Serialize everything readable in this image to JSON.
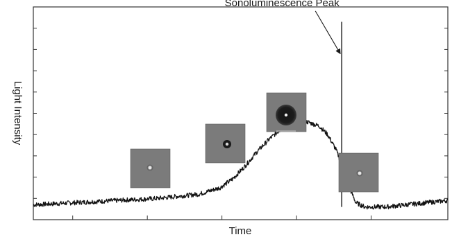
{
  "chart_data": {
    "type": "line",
    "title": "",
    "xlabel": "Time",
    "ylabel": "Light Intensity",
    "xlim": [
      0,
      100
    ],
    "ylim": [
      0,
      100
    ],
    "grid": false,
    "show_tick_labels": false,
    "series": [
      {
        "name": "",
        "color": "#111111",
        "x": [
          0,
          10,
          20,
          30,
          35,
          40,
          45,
          48,
          51,
          54,
          57,
          60,
          63,
          66,
          69,
          71,
          73,
          75,
          76.5,
          77.8,
          80,
          85,
          90,
          95,
          100
        ],
        "y": [
          7,
          8,
          9,
          10,
          11,
          12,
          15,
          19,
          25,
          32,
          38,
          43,
          46,
          46,
          44,
          40,
          33,
          23,
          14,
          8,
          6,
          6,
          7,
          8,
          9
        ]
      },
      {
        "name": "",
        "color": "#333333",
        "x": [
          74.4,
          74.4
        ],
        "y": [
          6,
          93
        ]
      }
    ],
    "annotations": [
      {
        "text": "Sonoluminescence Peak",
        "text_x": 60,
        "text_y": 102,
        "arrow_to_x": 74.4,
        "arrow_to_y": 78
      }
    ],
    "inset_images": [
      {
        "name": "bubble-frame-1",
        "bubble": "small-bright-spot"
      },
      {
        "name": "bubble-frame-2",
        "bubble": "small-ring"
      },
      {
        "name": "bubble-frame-3",
        "bubble": "large-dark-bubble"
      },
      {
        "name": "bubble-frame-4",
        "bubble": "small-bright-spot"
      }
    ]
  }
}
